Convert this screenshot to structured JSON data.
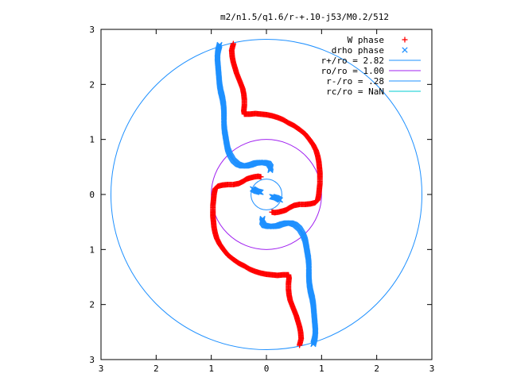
{
  "chart_data": {
    "type": "scatter",
    "title": "m2/n1.5/q1.6/r-+.10-j53/M0.2/512",
    "xlim": [
      -3,
      3
    ],
    "ylim": [
      -3,
      3
    ],
    "x_ticks": [
      -3,
      -2,
      -1,
      0,
      1,
      2,
      3
    ],
    "x_tick_labels": [
      "3",
      "2",
      "1",
      "0",
      "1",
      "2",
      "3"
    ],
    "y_ticks": [
      3,
      2,
      1,
      0,
      -1,
      -2,
      -3
    ],
    "y_tick_labels": [
      "3",
      "2",
      "1",
      "0",
      "1",
      "2",
      "3"
    ],
    "grid": false,
    "legend_position": "top-right",
    "legend": [
      {
        "label": "W phase",
        "kind": "plus",
        "color": "#ff0000"
      },
      {
        "label": "drho phase",
        "kind": "cross",
        "color": "#1e90ff"
      },
      {
        "label": "r+/ro = 2.82",
        "kind": "line",
        "color": "#1e90ff"
      },
      {
        "label": "ro/ro = 1.00",
        "kind": "line",
        "color": "#a020f0"
      },
      {
        "label": "r-/ro = .28",
        "kind": "line",
        "color": "#1e90ff"
      },
      {
        "label": "rc/ro = NaN",
        "kind": "line",
        "color": "#00ced1"
      }
    ],
    "circles": [
      {
        "label": "r+/ro = 2.82",
        "radius": 2.82,
        "color": "#1e90ff"
      },
      {
        "label": "ro/ro = 1.00",
        "radius": 1.0,
        "color": "#a020f0"
      },
      {
        "label": "r-/ro = .28",
        "radius": 0.28,
        "color": "#1e90ff"
      }
    ],
    "series": [
      {
        "name": "W phase",
        "color": "#ff0000",
        "marker": "plus",
        "points": [
          [
            -0.6,
            2.74
          ],
          [
            -0.63,
            2.62
          ],
          [
            -0.62,
            2.5
          ],
          [
            -0.6,
            2.4
          ],
          [
            -0.57,
            2.3
          ],
          [
            -0.54,
            2.2
          ],
          [
            -0.5,
            2.1
          ],
          [
            -0.46,
            2.0
          ],
          [
            -0.43,
            1.92
          ],
          [
            -0.41,
            1.82
          ],
          [
            -0.4,
            1.72
          ],
          [
            -0.4,
            1.62
          ],
          [
            -0.41,
            1.52
          ],
          [
            -0.4,
            1.46
          ],
          [
            -0.3,
            1.46
          ],
          [
            -0.2,
            1.47
          ],
          [
            -0.1,
            1.46
          ],
          [
            0.0,
            1.45
          ],
          [
            0.1,
            1.43
          ],
          [
            0.2,
            1.4
          ],
          [
            0.3,
            1.36
          ],
          [
            0.4,
            1.3
          ],
          [
            0.5,
            1.25
          ],
          [
            0.6,
            1.18
          ],
          [
            0.7,
            1.1
          ],
          [
            0.78,
            1.0
          ],
          [
            0.85,
            0.9
          ],
          [
            0.9,
            0.8
          ],
          [
            0.93,
            0.7
          ],
          [
            0.95,
            0.6
          ],
          [
            0.96,
            0.5
          ],
          [
            0.97,
            0.4
          ],
          [
            0.97,
            0.3
          ],
          [
            0.97,
            0.2
          ],
          [
            0.96,
            0.1
          ],
          [
            0.95,
            0.0
          ],
          [
            0.93,
            -0.1
          ],
          [
            0.88,
            -0.15
          ],
          [
            0.8,
            -0.17
          ],
          [
            0.7,
            -0.18
          ],
          [
            0.6,
            -0.18
          ],
          [
            0.5,
            -0.2
          ],
          [
            0.42,
            -0.24
          ],
          [
            0.36,
            -0.28
          ],
          [
            0.3,
            -0.3
          ],
          [
            0.22,
            -0.32
          ],
          [
            0.15,
            -0.33
          ],
          [
            0.1,
            -0.32
          ],
          [
            0.6,
            -2.74
          ],
          [
            0.63,
            -2.62
          ],
          [
            0.62,
            -2.5
          ],
          [
            0.6,
            -2.4
          ],
          [
            0.57,
            -2.3
          ],
          [
            0.54,
            -2.2
          ],
          [
            0.5,
            -2.1
          ],
          [
            0.46,
            -2.0
          ],
          [
            0.43,
            -1.92
          ],
          [
            0.41,
            -1.82
          ],
          [
            0.4,
            -1.72
          ],
          [
            0.4,
            -1.62
          ],
          [
            0.41,
            -1.52
          ],
          [
            0.4,
            -1.46
          ],
          [
            0.3,
            -1.46
          ],
          [
            0.2,
            -1.47
          ],
          [
            0.1,
            -1.46
          ],
          [
            0.0,
            -1.45
          ],
          [
            -0.1,
            -1.43
          ],
          [
            -0.2,
            -1.4
          ],
          [
            -0.3,
            -1.36
          ],
          [
            -0.4,
            -1.3
          ],
          [
            -0.5,
            -1.25
          ],
          [
            -0.6,
            -1.18
          ],
          [
            -0.7,
            -1.1
          ],
          [
            -0.78,
            -1.0
          ],
          [
            -0.85,
            -0.9
          ],
          [
            -0.9,
            -0.8
          ],
          [
            -0.93,
            -0.7
          ],
          [
            -0.95,
            -0.6
          ],
          [
            -0.96,
            -0.5
          ],
          [
            -0.97,
            -0.4
          ],
          [
            -0.97,
            -0.3
          ],
          [
            -0.97,
            -0.2
          ],
          [
            -0.96,
            -0.1
          ],
          [
            -0.95,
            0.0
          ],
          [
            -0.93,
            0.1
          ],
          [
            -0.88,
            0.15
          ],
          [
            -0.8,
            0.17
          ],
          [
            -0.7,
            0.18
          ],
          [
            -0.6,
            0.18
          ],
          [
            -0.5,
            0.2
          ],
          [
            -0.42,
            0.24
          ],
          [
            -0.36,
            0.28
          ],
          [
            -0.3,
            0.3
          ],
          [
            -0.22,
            0.32
          ],
          [
            -0.15,
            0.33
          ],
          [
            -0.1,
            0.32
          ]
        ]
      },
      {
        "name": "drho phase",
        "color": "#1e90ff",
        "marker": "cross",
        "points": [
          [
            -0.85,
            2.72
          ],
          [
            -0.88,
            2.6
          ],
          [
            -0.89,
            2.48
          ],
          [
            -0.88,
            2.36
          ],
          [
            -0.87,
            2.24
          ],
          [
            -0.86,
            2.12
          ],
          [
            -0.85,
            2.0
          ],
          [
            -0.83,
            1.88
          ],
          [
            -0.8,
            1.76
          ],
          [
            -0.78,
            1.64
          ],
          [
            -0.77,
            1.52
          ],
          [
            -0.77,
            1.4
          ],
          [
            -0.77,
            1.28
          ],
          [
            -0.76,
            1.16
          ],
          [
            -0.74,
            1.04
          ],
          [
            -0.72,
            0.92
          ],
          [
            -0.7,
            0.82
          ],
          [
            -0.66,
            0.72
          ],
          [
            -0.6,
            0.62
          ],
          [
            -0.52,
            0.55
          ],
          [
            -0.44,
            0.52
          ],
          [
            -0.36,
            0.52
          ],
          [
            -0.28,
            0.54
          ],
          [
            -0.2,
            0.57
          ],
          [
            -0.12,
            0.58
          ],
          [
            -0.04,
            0.58
          ],
          [
            0.04,
            0.56
          ],
          [
            0.08,
            0.5
          ],
          [
            0.07,
            0.44
          ],
          [
            -0.25,
            0.1
          ],
          [
            -0.18,
            0.06
          ],
          [
            -0.1,
            0.04
          ],
          [
            0.85,
            -2.72
          ],
          [
            0.88,
            -2.6
          ],
          [
            0.89,
            -2.48
          ],
          [
            0.88,
            -2.36
          ],
          [
            0.87,
            -2.24
          ],
          [
            0.86,
            -2.12
          ],
          [
            0.85,
            -2.0
          ],
          [
            0.83,
            -1.88
          ],
          [
            0.8,
            -1.76
          ],
          [
            0.78,
            -1.64
          ],
          [
            0.77,
            -1.52
          ],
          [
            0.77,
            -1.4
          ],
          [
            0.77,
            -1.28
          ],
          [
            0.76,
            -1.16
          ],
          [
            0.74,
            -1.04
          ],
          [
            0.72,
            -0.92
          ],
          [
            0.7,
            -0.82
          ],
          [
            0.66,
            -0.72
          ],
          [
            0.6,
            -0.62
          ],
          [
            0.52,
            -0.55
          ],
          [
            0.44,
            -0.52
          ],
          [
            0.36,
            -0.52
          ],
          [
            0.28,
            -0.54
          ],
          [
            0.2,
            -0.57
          ],
          [
            0.12,
            -0.58
          ],
          [
            0.04,
            -0.58
          ],
          [
            -0.04,
            -0.56
          ],
          [
            -0.08,
            -0.5
          ],
          [
            -0.07,
            -0.44
          ],
          [
            0.25,
            -0.1
          ],
          [
            0.18,
            -0.06
          ],
          [
            0.1,
            -0.04
          ]
        ]
      }
    ]
  }
}
